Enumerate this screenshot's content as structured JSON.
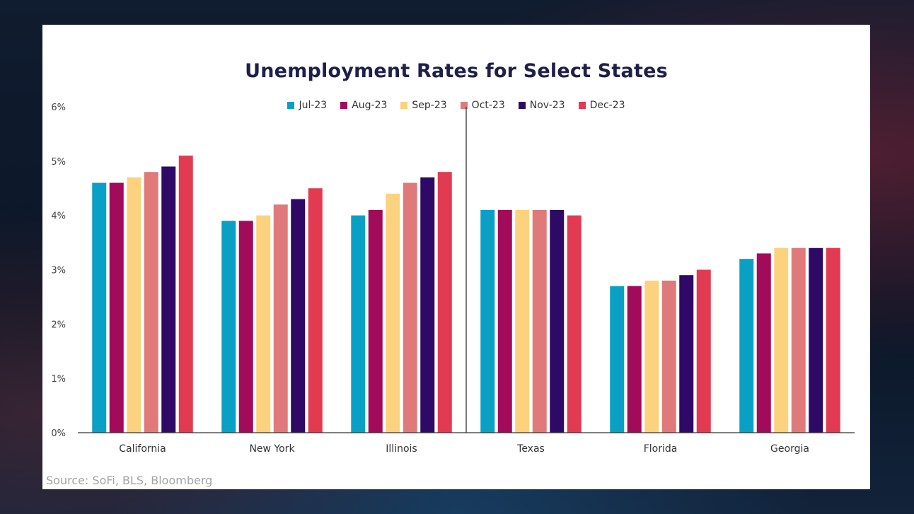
{
  "chart_data": {
    "type": "bar",
    "title": "Unemployment Rates for Select States",
    "xlabel": "",
    "ylabel": "",
    "ylim": [
      0,
      6
    ],
    "yticks": [
      "0%",
      "1%",
      "2%",
      "3%",
      "4%",
      "5%",
      "6%"
    ],
    "categories": [
      "California",
      "New York",
      "Illinois",
      "Texas",
      "Florida",
      "Georgia"
    ],
    "series": [
      {
        "name": "Jul-23",
        "color": "#0aa0c6",
        "values": [
          4.6,
          3.9,
          4.0,
          4.1,
          2.7,
          3.2
        ]
      },
      {
        "name": "Aug-23",
        "color": "#a20a5a",
        "values": [
          4.6,
          3.9,
          4.1,
          4.1,
          2.7,
          3.3
        ]
      },
      {
        "name": "Sep-23",
        "color": "#fdd27e",
        "values": [
          4.7,
          4.0,
          4.4,
          4.1,
          2.8,
          3.4
        ]
      },
      {
        "name": "Oct-23",
        "color": "#e07a7a",
        "values": [
          4.8,
          4.2,
          4.6,
          4.1,
          2.8,
          3.4
        ]
      },
      {
        "name": "Nov-23",
        "color": "#2e0a66",
        "values": [
          4.9,
          4.3,
          4.7,
          4.1,
          2.9,
          3.4
        ]
      },
      {
        "name": "Dec-23",
        "color": "#e23a50",
        "values": [
          5.1,
          4.5,
          4.8,
          4.0,
          3.0,
          3.4
        ]
      }
    ],
    "legend": "top-center",
    "grid": false,
    "source": "Source: SoFi, BLS, Bloomberg"
  }
}
